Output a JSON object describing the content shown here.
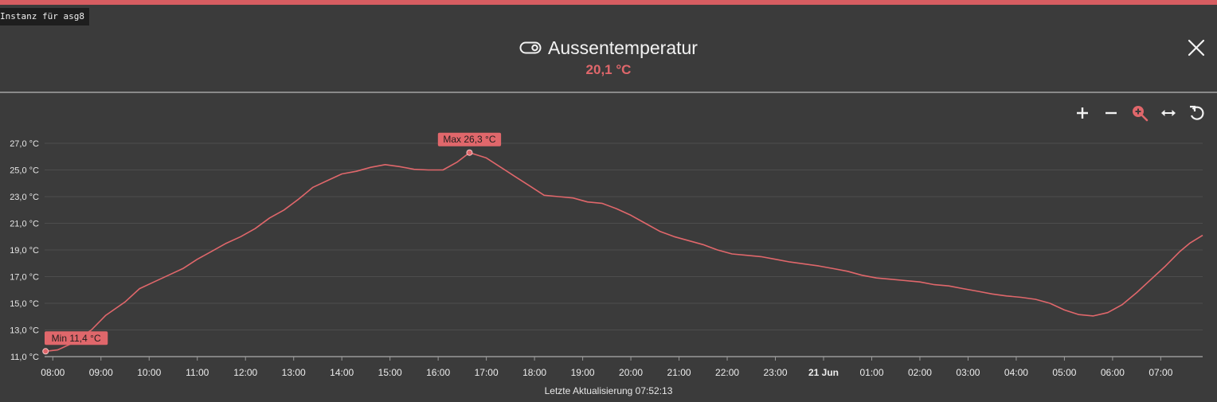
{
  "window": {
    "instance_label": "Instanz für asg8"
  },
  "header": {
    "title": "Aussentemperatur",
    "current_value": "20,1 °C"
  },
  "footer": {
    "last_update": "Letzte Aktualisierung 07:52:13"
  },
  "colors": {
    "accent": "#d75d61",
    "line": "#e0676b",
    "background": "#3b3b3b"
  },
  "toolbar": {
    "icons": [
      "plus-icon",
      "minus-icon",
      "zoom-in-icon",
      "pan-icon",
      "reset-icon"
    ]
  },
  "chart_data": {
    "type": "line",
    "ylim": [
      11,
      27
    ],
    "y_ticks": [
      11,
      13,
      15,
      17,
      19,
      21,
      23,
      25,
      27
    ],
    "y_tick_labels": [
      "11,0 °C",
      "13,0 °C",
      "15,0 °C",
      "17,0 °C",
      "19,0 °C",
      "21,0 °C",
      "23,0 °C",
      "25,0 °C",
      "27,0 °C"
    ],
    "x_ticks": [
      8,
      9,
      10,
      11,
      12,
      13,
      14,
      15,
      16,
      17,
      18,
      19,
      20,
      21,
      22,
      23,
      24,
      25,
      26,
      27,
      28,
      29,
      30,
      31
    ],
    "x_tick_labels": [
      "08:00",
      "09:00",
      "10:00",
      "11:00",
      "12:00",
      "13:00",
      "14:00",
      "15:00",
      "16:00",
      "17:00",
      "18:00",
      "19:00",
      "20:00",
      "21:00",
      "22:00",
      "23:00",
      "21 Jun",
      "01:00",
      "02:00",
      "03:00",
      "04:00",
      "05:00",
      "06:00",
      "07:00"
    ],
    "bold_tick": "21 Jun",
    "xlim": [
      7.83,
      31.87
    ],
    "grid": true,
    "x": [
      7.85,
      8.1,
      8.4,
      8.8,
      9.1,
      9.5,
      9.8,
      10.1,
      10.4,
      10.7,
      11.0,
      11.3,
      11.6,
      11.9,
      12.2,
      12.5,
      12.8,
      13.1,
      13.4,
      13.7,
      14.0,
      14.3,
      14.6,
      14.9,
      15.2,
      15.5,
      15.8,
      16.1,
      16.4,
      16.65,
      17.0,
      17.3,
      17.6,
      17.9,
      18.2,
      18.5,
      18.8,
      19.1,
      19.4,
      19.7,
      20.0,
      20.3,
      20.6,
      20.9,
      21.2,
      21.5,
      21.8,
      22.1,
      22.4,
      22.7,
      23.0,
      23.3,
      23.6,
      23.9,
      24.2,
      24.5,
      24.8,
      25.1,
      25.4,
      25.7,
      26.0,
      26.3,
      26.6,
      26.9,
      27.2,
      27.5,
      27.8,
      28.1,
      28.4,
      28.7,
      29.0,
      29.3,
      29.6,
      29.9,
      30.2,
      30.5,
      30.8,
      31.1,
      31.4,
      31.6,
      31.87
    ],
    "y": [
      11.4,
      11.5,
      12.0,
      13.0,
      14.1,
      15.1,
      16.1,
      16.6,
      17.1,
      17.6,
      18.3,
      18.9,
      19.5,
      20.0,
      20.6,
      21.4,
      22.0,
      22.8,
      23.7,
      24.2,
      24.7,
      24.9,
      25.2,
      25.4,
      25.25,
      25.05,
      25.0,
      25.0,
      25.6,
      26.3,
      25.9,
      25.2,
      24.5,
      23.8,
      23.1,
      23.0,
      22.9,
      22.6,
      22.5,
      22.1,
      21.6,
      21.0,
      20.4,
      20.0,
      19.7,
      19.4,
      19.0,
      18.7,
      18.6,
      18.5,
      18.3,
      18.1,
      17.95,
      17.8,
      17.6,
      17.4,
      17.1,
      16.9,
      16.8,
      16.7,
      16.6,
      16.4,
      16.3,
      16.1,
      15.9,
      15.7,
      15.55,
      15.45,
      15.3,
      15.0,
      14.5,
      14.15,
      14.05,
      14.3,
      14.9,
      15.8,
      16.8,
      17.8,
      18.9,
      19.5,
      20.1
    ],
    "annotations": [
      {
        "label": "Min 11,4 °C",
        "x": 7.85,
        "y": 11.4
      },
      {
        "label": "Max 26,3 °C",
        "x": 16.65,
        "y": 26.3
      }
    ]
  }
}
